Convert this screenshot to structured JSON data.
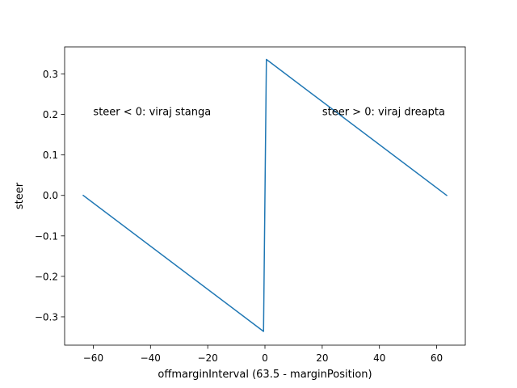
{
  "chart_data": {
    "type": "line",
    "title": "",
    "xlabel": "offmarginInterval (63.5 - marginPosition)",
    "ylabel": "steer",
    "xlim": [
      -70,
      70
    ],
    "ylim": [
      -0.37,
      0.367
    ],
    "xticks": [
      -60,
      -40,
      -20,
      0,
      20,
      40,
      60
    ],
    "yticks": [
      -0.3,
      -0.2,
      -0.1,
      0.0,
      0.1,
      0.2,
      0.3
    ],
    "xtick_labels": [
      "−60",
      "−40",
      "−20",
      "0",
      "20",
      "40",
      "60"
    ],
    "ytick_labels": [
      "−0.3",
      "−0.2",
      "−0.1",
      "0.0",
      "0.1",
      "0.2",
      "0.3"
    ],
    "grid": false,
    "series": [
      {
        "color": "#1f77b4",
        "x": [
          -63.5,
          -0.5,
          0.5,
          63.5
        ],
        "y": [
          0.0,
          -0.336,
          0.336,
          0.0
        ]
      }
    ],
    "annotations": [
      {
        "text": "steer < 0: viraj stanga",
        "x": -60,
        "y": 0.2
      },
      {
        "text": "steer > 0: viraj dreapta",
        "x": 20,
        "y": 0.2
      }
    ]
  }
}
